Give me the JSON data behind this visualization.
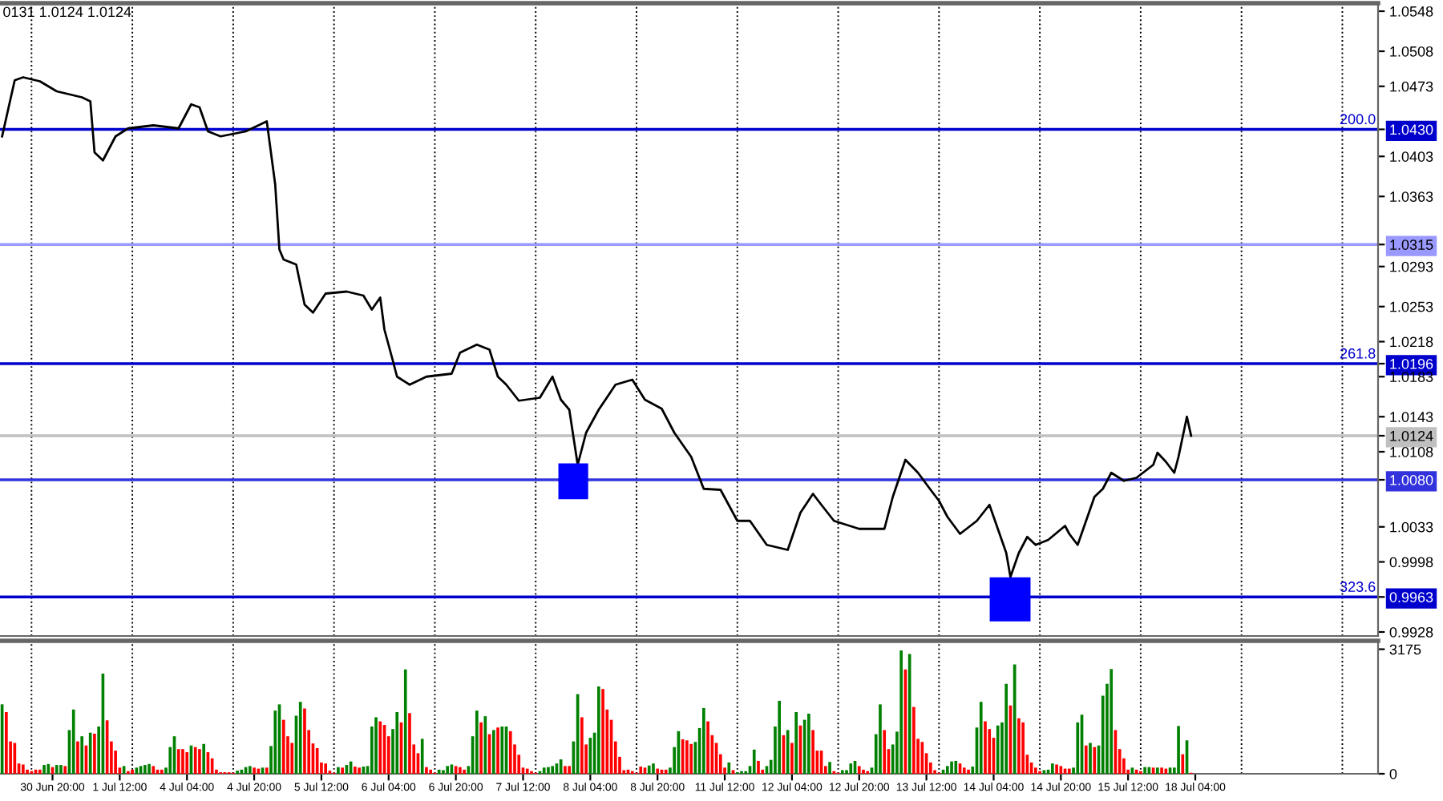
{
  "chart_data": [
    {
      "type": "line",
      "tick_labels": "y",
      "ylim": [
        0.9924,
        1.0556
      ],
      "categories": [
        null,
        null,
        null,
        null,
        null,
        null,
        null,
        null,
        null,
        null,
        null,
        null,
        null,
        null,
        null,
        null,
        null,
        null,
        null,
        null,
        null,
        null,
        null,
        null,
        null,
        null,
        null,
        null,
        null,
        null,
        null,
        null,
        null,
        null,
        null,
        null,
        null,
        null,
        null,
        null,
        null,
        null,
        null,
        null,
        null,
        null,
        null,
        null,
        null,
        null,
        null,
        null,
        null,
        null,
        null,
        null,
        null,
        null,
        null,
        null,
        null,
        null,
        null,
        null,
        null,
        null,
        null,
        null,
        null,
        null,
        null,
        null,
        null,
        null,
        null,
        null,
        null,
        null,
        null,
        null,
        null,
        null,
        null,
        null,
        null,
        null,
        null,
        null,
        null,
        null,
        null,
        null,
        null,
        null,
        null,
        null,
        null,
        null,
        null,
        null,
        null,
        null,
        null,
        null,
        null,
        null,
        null,
        null,
        null,
        null,
        null,
        null,
        null,
        null,
        null,
        null,
        null,
        null,
        null,
        null,
        null,
        null,
        null,
        null,
        null,
        null,
        null,
        null,
        null,
        null,
        null,
        null,
        null,
        null,
        null,
        null,
        null,
        null,
        null,
        null,
        null,
        null,
        null,
        null,
        null,
        null,
        null,
        null,
        null,
        null,
        null,
        null,
        null,
        null,
        null,
        null,
        null,
        null,
        null,
        null,
        null,
        null,
        null,
        null,
        null,
        null,
        null,
        null,
        null,
        null,
        null,
        null,
        null,
        null,
        null,
        null,
        null,
        null,
        null,
        null,
        null,
        null,
        null,
        null,
        null,
        null,
        null,
        null,
        null,
        null,
        null,
        null,
        null,
        null,
        null,
        null,
        null,
        null,
        null,
        null,
        null,
        null,
        null,
        null,
        null,
        null,
        null,
        null,
        null,
        null,
        null,
        null,
        null,
        null,
        null,
        null,
        null,
        null,
        null,
        null,
        null,
        null,
        null,
        null,
        null,
        null,
        null,
        null,
        null,
        null,
        null,
        null,
        null,
        null,
        null,
        null,
        null,
        null,
        null,
        null,
        null,
        null,
        null,
        null,
        null,
        null,
        null,
        null,
        null,
        null,
        null,
        null,
        null,
        null,
        null,
        null,
        null,
        null,
        null,
        null,
        null,
        null,
        null,
        null,
        null,
        null,
        null,
        null,
        null,
        null,
        null,
        null,
        null,
        null,
        null,
        null,
        null,
        null,
        null,
        null,
        null,
        null,
        null,
        null,
        null,
        null,
        null,
        null,
        null,
        null,
        null,
        null,
        null,
        null,
        null,
        null,
        null,
        null,
        null,
        null,
        null,
        null,
        null,
        null,
        null,
        null,
        null,
        null,
        null,
        null,
        null,
        null,
        null,
        null,
        null,
        null,
        null,
        null,
        null,
        null,
        null,
        null,
        null,
        null,
        null,
        null,
        null,
        null
      ],
      "yticks": [
        1.0548,
        1.0508,
        1.0473,
        {
          "value": 1.043,
          "label": "1.0430"
        },
        1.0403,
        1.0363,
        {
          "value": 1.0315,
          "label": "1.0315"
        },
        1.0293,
        1.0253,
        1.0218,
        {
          "value": 1.0196,
          "label": "1.0196"
        },
        1.0183,
        1.0143,
        {
          "value": 1.0124,
          "label": "1.0124"
        },
        1.0108,
        {
          "value": 1.008,
          "label": "1.0080"
        },
        1.0033,
        0.9998,
        {
          "value": 0.9963,
          "label": "0.9963"
        },
        0.9928
      ],
      "annotations": [
        "0131 1.0124 1.0124",
        {
          "text": "200.0",
          "y": 1.043
        },
        {
          "text": "261.8",
          "y": 1.0196
        },
        {
          "text": "323.6",
          "y": 0.9963
        }
      ],
      "series": [
        {
          "color": "#000000",
          "values": [
            1.0423,
            null,
            null,
            1.0479,
            null,
            1.0482,
            null,
            null,
            null,
            1.0478,
            null,
            null,
            null,
            1.0468,
            null,
            null,
            null,
            null,
            null,
            1.0462,
            null,
            1.0458,
            1.0407,
            null,
            1.0399,
            null,
            null,
            1.0423,
            null,
            null,
            1.0431,
            null,
            null,
            null,
            null,
            null,
            1.0434,
            null,
            null,
            null,
            null,
            null,
            1.0431,
            null,
            null,
            1.0455,
            null,
            1.0452,
            null,
            1.0428,
            null,
            null,
            1.0423,
            null,
            null,
            null,
            null,
            null,
            1.0428,
            null,
            null,
            null,
            null,
            1.0438,
            null,
            1.0375,
            1.031,
            1.03,
            null,
            null,
            1.0295,
            null,
            1.0255,
            null,
            1.0247,
            null,
            null,
            1.0266,
            null,
            null,
            null,
            null,
            1.0268,
            null,
            null,
            null,
            1.0264,
            null,
            1.025,
            null,
            1.0262,
            1.023,
            null,
            1.0199,
            1.0183,
            null,
            null,
            1.0175,
            null,
            null,
            null,
            1.0183,
            null,
            null,
            null,
            null,
            null,
            1.0186,
            null,
            1.0207,
            null,
            null,
            null,
            1.0215,
            null,
            null,
            1.021,
            null,
            1.0183,
            null,
            1.0175,
            null,
            null,
            1.0159,
            null,
            null,
            null,
            null,
            1.0162,
            null,
            null,
            1.0183,
            null,
            1.016,
            null,
            1.015,
            null,
            1.0095,
            null,
            1.0127,
            null,
            null,
            1.015,
            null,
            null,
            null,
            1.0175,
            null,
            null,
            null,
            1.018,
            null,
            null,
            1.016,
            null,
            null,
            null,
            1.0151,
            null,
            null,
            1.0127,
            null,
            null,
            null,
            1.0103,
            null,
            null,
            1.0071,
            null,
            null,
            null,
            1.007,
            null,
            null,
            null,
            1.0039,
            null,
            null,
            1.0039,
            null,
            null,
            null,
            1.0015,
            null,
            null,
            null,
            null,
            1.001,
            null,
            null,
            1.0047,
            null,
            null,
            1.0066,
            null,
            1.0055,
            null,
            null,
            1.0039,
            null,
            null,
            null,
            null,
            null,
            1.0031,
            null,
            null,
            null,
            null,
            null,
            1.0031,
            null,
            1.0063,
            null,
            null,
            1.01,
            null,
            null,
            1.0087,
            null,
            null,
            1.007,
            null,
            1.0059,
            null,
            1.0043,
            null,
            null,
            1.0026,
            null,
            null,
            null,
            1.0039,
            null,
            null,
            1.0055,
            null,
            1.0031,
            null,
            1.0007,
            0.9983,
            null,
            1.0007,
            null,
            1.0023,
            null,
            1.0015,
            null,
            null,
            1.002,
            null,
            null,
            null,
            1.0034,
            1.0026,
            null,
            1.0015,
            null,
            1.0039,
            null,
            1.0063,
            null,
            1.0071,
            null,
            1.0087,
            null,
            null,
            1.0079,
            null,
            null,
            1.0082,
            null,
            null,
            null,
            1.0095,
            1.0107,
            null,
            1.0098,
            null,
            1.0087,
            1.0103,
            null,
            1.0143,
            1.0124,
            null,
            null,
            null,
            null,
            null,
            null,
            null,
            null,
            null,
            null,
            null,
            null,
            null,
            null,
            null,
            null,
            null,
            null,
            null,
            null,
            null,
            null,
            null,
            null,
            null,
            null,
            null,
            null,
            null,
            null,
            null,
            null,
            null,
            null,
            null,
            null,
            null,
            null,
            null,
            null,
            null,
            null,
            null,
            null
          ]
        }
      ],
      "ref_lines": [
        {
          "axis": "y",
          "value": 1.043,
          "color": "#0000cd"
        },
        {
          "axis": "y",
          "value": 1.0315,
          "color": "#9999ff"
        },
        {
          "axis": "y",
          "value": 1.0196,
          "color": "#0000cd"
        },
        {
          "axis": "y",
          "value": 1.0124,
          "color": "#c0c0c0"
        },
        {
          "axis": "y",
          "value": 1.008,
          "color": "#3333dd"
        },
        {
          "axis": "y",
          "value": 0.9963,
          "color": "#0000cd"
        }
      ]
    },
    {
      "type": "bar",
      "ylim": [
        0,
        3390
      ],
      "yticks": [
        3175,
        0
      ],
      "categories": [
        null,
        null,
        null,
        null,
        null,
        null,
        null,
        null,
        null,
        null,
        null,
        null,
        "30 Jun 20:00",
        null,
        null,
        null,
        null,
        null,
        null,
        null,
        null,
        null,
        null,
        null,
        null,
        null,
        null,
        null,
        "1 Jul 12:00",
        null,
        null,
        null,
        null,
        null,
        null,
        null,
        null,
        null,
        null,
        null,
        null,
        null,
        null,
        null,
        "4 Jul 04:00",
        null,
        null,
        null,
        null,
        null,
        null,
        null,
        null,
        null,
        null,
        null,
        null,
        null,
        null,
        null,
        "4 Jul 20:00",
        null,
        null,
        null,
        null,
        null,
        null,
        null,
        null,
        null,
        null,
        null,
        null,
        null,
        null,
        null,
        "5 Jul 12:00",
        null,
        null,
        null,
        null,
        null,
        null,
        null,
        null,
        null,
        null,
        null,
        null,
        null,
        null,
        null,
        "6 Jul 04:00",
        null,
        null,
        null,
        null,
        null,
        null,
        null,
        null,
        null,
        null,
        null,
        null,
        null,
        null,
        null,
        "6 Jul 20:00",
        null,
        null,
        null,
        null,
        null,
        null,
        null,
        null,
        null,
        null,
        null,
        null,
        null,
        null,
        null,
        "7 Jul 12:00",
        null,
        null,
        null,
        null,
        null,
        null,
        null,
        null,
        null,
        null,
        null,
        null,
        null,
        null,
        null,
        "8 Jul 04:00",
        null,
        null,
        null,
        null,
        null,
        null,
        null,
        null,
        null,
        null,
        null,
        null,
        null,
        null,
        null,
        "8 Jul 20:00",
        null,
        null,
        null,
        null,
        null,
        null,
        null,
        null,
        null,
        null,
        null,
        null,
        null,
        null,
        null,
        "11 Jul 12:00",
        null,
        null,
        null,
        null,
        null,
        null,
        null,
        null,
        null,
        null,
        null,
        null,
        null,
        null,
        null,
        "12 Jul 04:00",
        null,
        null,
        null,
        null,
        null,
        null,
        null,
        null,
        null,
        null,
        null,
        null,
        null,
        null,
        null,
        "12 Jul 20:00",
        null,
        null,
        null,
        null,
        null,
        null,
        null,
        null,
        null,
        null,
        null,
        null,
        null,
        null,
        null,
        "13 Jul 12:00",
        null,
        null,
        null,
        null,
        null,
        null,
        null,
        null,
        null,
        null,
        null,
        null,
        null,
        null,
        null,
        "14 Jul 04:00",
        null,
        null,
        null,
        null,
        null,
        null,
        null,
        null,
        null,
        null,
        null,
        null,
        null,
        null,
        null,
        "14 Jul 20:00",
        null,
        null,
        null,
        null,
        null,
        null,
        null,
        null,
        null,
        null,
        null,
        null,
        null,
        null,
        null,
        "15 Jul 12:00",
        null,
        null,
        null,
        null,
        null,
        null,
        null,
        null,
        null,
        null,
        null,
        null,
        null,
        null,
        null,
        "18 Jul 04:00",
        null,
        null,
        null,
        null,
        null,
        null,
        null,
        null,
        null,
        null,
        null,
        null,
        null,
        null,
        null,
        null,
        null,
        null,
        null,
        null,
        null,
        null,
        null,
        null,
        null,
        null,
        null,
        null,
        null,
        null,
        null,
        null,
        null,
        null,
        null,
        null,
        null,
        null,
        null,
        null,
        null,
        null,
        null
      ],
      "values": [
        1770,
        1572,
        825,
        786,
        262,
        236,
        105,
        66,
        105,
        105,
        223,
        249,
        170,
        223,
        223,
        197,
        1114,
        1638,
        825,
        956,
        721,
        1048,
        1022,
        1205,
        2555,
        1362,
        825,
        590,
        157,
        197,
        66,
        105,
        157,
        197,
        223,
        249,
        197,
        105,
        105,
        157,
        681,
        956,
        629,
        629,
        550,
        721,
        681,
        629,
        760,
        550,
        393,
        105,
        39,
        39,
        39,
        26,
        79,
        105,
        170,
        197,
        157,
        131,
        157,
        157,
        707,
        1611,
        1769,
        1376,
        956,
        786,
        1480,
        1834,
        1664,
        1114,
        773,
        655,
        288,
        262,
        79,
        26,
        170,
        157,
        223,
        314,
        183,
        157,
        183,
        197,
        1205,
        1441,
        1336,
        1245,
        956,
        1140,
        1572,
        1310,
        2659,
        1546,
        747,
        524,
        891,
        170,
        105,
        26,
        105,
        92,
        197,
        236,
        197,
        170,
        105,
        197,
        956,
        1611,
        1310,
        1467,
        1009,
        1114,
        1179,
        1205,
        1205,
        1087,
        747,
        485,
        157,
        131,
        66,
        26,
        66,
        157,
        170,
        197,
        262,
        367,
        197,
        197,
        825,
        2031,
        1441,
        747,
        917,
        1048,
        2227,
        2162,
        1638,
        1376,
        825,
        432,
        92,
        105,
        66,
        26,
        183,
        157,
        210,
        262,
        131,
        105,
        105,
        157,
        681,
        1087,
        878,
        852,
        760,
        812,
        1166,
        1677,
        1336,
        983,
        786,
        498,
        157,
        288,
        92,
        39,
        66,
        66,
        197,
        616,
        328,
        105,
        197,
        354,
        1205,
        1860,
        983,
        1114,
        786,
        1572,
        1231,
        1376,
        1533,
        1114,
        590,
        590,
        197,
        301,
        66,
        26,
        92,
        92,
        262,
        328,
        197,
        105,
        66,
        157,
        1009,
        1769,
        1114,
        629,
        747,
        1074,
        3144,
        2659,
        3052,
        1703,
        891,
        812,
        524,
        288,
        92,
        26,
        105,
        197,
        314,
        328,
        262,
        157,
        105,
        183,
        1179,
        1834,
        1336,
        1140,
        917,
        1231,
        1310,
        2293,
        1742,
        2790,
        1415,
        1310,
        485,
        288,
        157,
        66,
        92,
        105,
        262,
        236,
        197,
        131,
        131,
        157,
        1310,
        1507,
        721,
        786,
        681,
        721,
        1991,
        2293,
        2672,
        1114,
        629,
        393,
        105,
        157,
        105,
        66,
        170,
        170,
        157,
        157,
        157,
        131,
        157,
        157,
        1218,
        498,
        852,
        26,
        null,
        null,
        null,
        null,
        null,
        null,
        null,
        null,
        null,
        null,
        null,
        null,
        null,
        null,
        null,
        null,
        null,
        null,
        null,
        null,
        null,
        null,
        null,
        null,
        null,
        null,
        null,
        null,
        null,
        null,
        null,
        null,
        null,
        null,
        null,
        null,
        null,
        null,
        null,
        null,
        null,
        null,
        null,
        null
      ],
      "colors": [
        "#008000",
        "#ff0000",
        "#ff0000",
        "#ff0000",
        "#ff0000",
        "#ff0000",
        "#ff0000",
        "#ff0000",
        "#ff0000",
        "#ff0000",
        "#008000",
        "#008000",
        "#ff0000",
        "#008000",
        "#008000",
        "#ff0000",
        "#008000",
        "#008000",
        "#ff0000",
        "#008000",
        "#ff0000",
        "#008000",
        "#ff0000",
        "#008000",
        "#008000",
        "#ff0000",
        "#ff0000",
        "#ff0000",
        "#ff0000",
        "#008000",
        "#ff0000",
        "#ff0000",
        "#008000",
        "#008000",
        "#008000",
        "#008000",
        "#ff0000",
        "#ff0000",
        "#ff0000",
        "#008000",
        "#008000",
        "#008000",
        "#ff0000",
        "#ff0000",
        "#ff0000",
        "#008000",
        "#ff0000",
        "#ff0000",
        "#008000",
        "#ff0000",
        "#ff0000",
        "#ff0000",
        "#ff0000",
        "#ff0000",
        "#ff0000",
        "#ff0000",
        "#008000",
        "#008000",
        "#008000",
        "#008000",
        "#ff0000",
        "#ff0000",
        "#008000",
        "#ff0000",
        "#008000",
        "#008000",
        "#008000",
        "#ff0000",
        "#ff0000",
        "#ff0000",
        "#008000",
        "#008000",
        "#ff0000",
        "#ff0000",
        "#ff0000",
        "#ff0000",
        "#ff0000",
        "#ff0000",
        "#ff0000",
        "#ff0000",
        "#008000",
        "#ff0000",
        "#008000",
        "#008000",
        "#ff0000",
        "#ff0000",
        "#008000",
        "#008000",
        "#008000",
        "#008000",
        "#ff0000",
        "#ff0000",
        "#ff0000",
        "#008000",
        "#008000",
        "#ff0000",
        "#008000",
        "#ff0000",
        "#ff0000",
        "#ff0000",
        "#008000",
        "#ff0000",
        "#ff0000",
        "#ff0000",
        "#008000",
        "#008000",
        "#008000",
        "#008000",
        "#ff0000",
        "#ff0000",
        "#ff0000",
        "#008000",
        "#008000",
        "#008000",
        "#ff0000",
        "#008000",
        "#ff0000",
        "#008000",
        "#ff0000",
        "#008000",
        "#008000",
        "#ff0000",
        "#ff0000",
        "#ff0000",
        "#ff0000",
        "#ff0000",
        "#ff0000",
        "#ff0000",
        "#008000",
        "#008000",
        "#008000",
        "#008000",
        "#008000",
        "#008000",
        "#ff0000",
        "#ff0000",
        "#008000",
        "#008000",
        "#ff0000",
        "#ff0000",
        "#008000",
        "#008000",
        "#008000",
        "#ff0000",
        "#ff0000",
        "#ff0000",
        "#ff0000",
        "#ff0000",
        "#ff0000",
        "#ff0000",
        "#ff0000",
        "#ff0000",
        "#ff0000",
        "#ff0000",
        "#008000",
        "#008000",
        "#ff0000",
        "#ff0000",
        "#ff0000",
        "#008000",
        "#008000",
        "#008000",
        "#ff0000",
        "#ff0000",
        "#ff0000",
        "#008000",
        "#008000",
        "#008000",
        "#ff0000",
        "#ff0000",
        "#ff0000",
        "#ff0000",
        "#ff0000",
        "#008000",
        "#ff0000",
        "#008000",
        "#008000",
        "#008000",
        "#008000",
        "#008000",
        "#ff0000",
        "#ff0000",
        "#008000",
        "#008000",
        "#008000",
        "#008000",
        "#ff0000",
        "#008000",
        "#ff0000",
        "#008000",
        "#ff0000",
        "#008000",
        "#008000",
        "#ff0000",
        "#ff0000",
        "#ff0000",
        "#ff0000",
        "#008000",
        "#ff0000",
        "#ff0000",
        "#008000",
        "#008000",
        "#008000",
        "#008000",
        "#ff0000",
        "#ff0000",
        "#ff0000",
        "#008000",
        "#008000",
        "#008000",
        "#ff0000",
        "#ff0000",
        "#008000",
        "#008000",
        "#008000",
        "#ff0000",
        "#008000",
        "#ff0000",
        "#ff0000",
        "#ff0000",
        "#ff0000",
        "#ff0000",
        "#ff0000",
        "#ff0000",
        "#008000",
        "#008000",
        "#008000",
        "#008000",
        "#ff0000",
        "#ff0000",
        "#ff0000",
        "#008000",
        "#008000",
        "#008000",
        "#ff0000",
        "#ff0000",
        "#ff0000",
        "#008000",
        "#008000",
        "#008000",
        "#ff0000",
        "#008000",
        "#ff0000",
        "#ff0000",
        "#ff0000",
        "#ff0000",
        "#ff0000",
        "#ff0000",
        "#008000",
        "#008000",
        "#008000",
        "#ff0000",
        "#ff0000",
        "#ff0000",
        "#ff0000",
        "#008000",
        "#008000",
        "#008000",
        "#ff0000",
        "#008000",
        "#ff0000",
        "#008000",
        "#008000",
        "#008000",
        "#008000",
        "#ff0000",
        "#ff0000",
        "#ff0000",
        "#ff0000",
        "#008000",
        "#ff0000",
        "#ff0000",
        "#008000",
        "#008000",
        "#ff0000",
        "#008000",
        "#ff0000",
        "#ff0000",
        "#008000",
        "#008000",
        "#008000",
        "#ff0000",
        "#008000",
        "#ff0000",
        null,
        null,
        null,
        null,
        null,
        null,
        null,
        null,
        null,
        null,
        null,
        null,
        null,
        null,
        null,
        null,
        null,
        null,
        null,
        null,
        null,
        null,
        null,
        null,
        null,
        null,
        null,
        null,
        null,
        null,
        null,
        null,
        null,
        null,
        null,
        null,
        null,
        null,
        null,
        null,
        null,
        null,
        null,
        null
      ]
    }
  ]
}
